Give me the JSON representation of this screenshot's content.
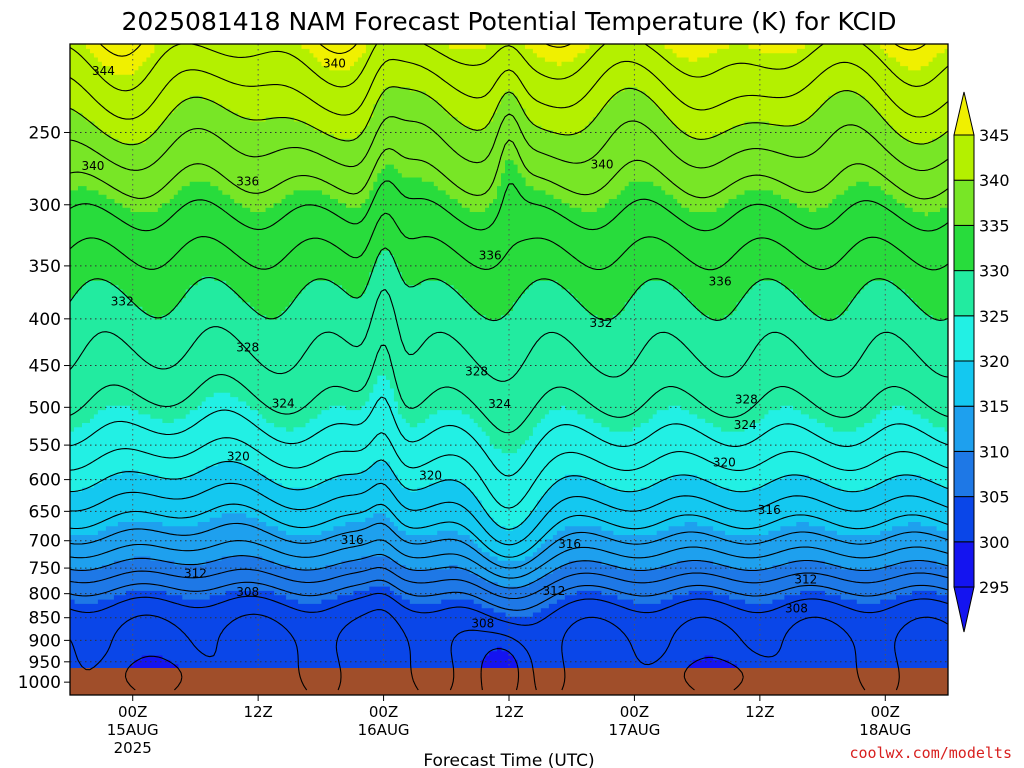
{
  "chart_data": {
    "type": "contour",
    "title": "2025081418 NAM Forecast Potential Temperature (K) for KCID",
    "xlabel": "Forecast Time (UTC)",
    "ylabel": "",
    "y_log_scale": true,
    "ylim": [
      1000,
      200
    ],
    "y_ticks": [
      250,
      300,
      350,
      400,
      450,
      500,
      550,
      600,
      650,
      700,
      750,
      800,
      850,
      900,
      950,
      1000
    ],
    "x_ticks": [
      {
        "hour": 6,
        "line1": "00Z",
        "line2": "15AUG",
        "line3": "2025"
      },
      {
        "hour": 18,
        "line1": "12Z",
        "line2": "",
        "line3": ""
      },
      {
        "hour": 30,
        "line1": "00Z",
        "line2": "16AUG",
        "line3": ""
      },
      {
        "hour": 42,
        "line1": "12Z",
        "line2": "",
        "line3": ""
      },
      {
        "hour": 54,
        "line1": "00Z",
        "line2": "17AUG",
        "line3": ""
      },
      {
        "hour": 66,
        "line1": "12Z",
        "line2": "",
        "line3": ""
      },
      {
        "hour": 78,
        "line1": "00Z",
        "line2": "18AUG",
        "line3": ""
      }
    ],
    "xlim_hours": [
      0,
      84
    ],
    "colorbar": {
      "levels": [
        295,
        300,
        305,
        310,
        315,
        320,
        325,
        330,
        335,
        340,
        345
      ],
      "colors": [
        "#1414f0",
        "#0a46e8",
        "#1e78e6",
        "#1ea0ee",
        "#14c8f0",
        "#22f0e4",
        "#22eba0",
        "#28dc3c",
        "#78e626",
        "#b4f000",
        "#f0f000"
      ],
      "extend_low_color": "#1414f0",
      "extend_high_color": "#f0f000"
    },
    "contour_labels": [
      {
        "value": "344",
        "hour": 3.2,
        "p": 214
      },
      {
        "value": "340",
        "hour": 25.3,
        "p": 210
      },
      {
        "value": "340",
        "hour": 2.2,
        "p": 272
      },
      {
        "value": "340",
        "hour": 50.9,
        "p": 271
      },
      {
        "value": "336",
        "hour": 17.0,
        "p": 283
      },
      {
        "value": "336",
        "hour": 40.2,
        "p": 341
      },
      {
        "value": "336",
        "hour": 62.2,
        "p": 364
      },
      {
        "value": "332",
        "hour": 5.0,
        "p": 383
      },
      {
        "value": "332",
        "hour": 50.8,
        "p": 404
      },
      {
        "value": "328",
        "hour": 17.0,
        "p": 430
      },
      {
        "value": "328",
        "hour": 38.9,
        "p": 457
      },
      {
        "value": "328",
        "hour": 64.7,
        "p": 490
      },
      {
        "value": "324",
        "hour": 20.4,
        "p": 495
      },
      {
        "value": "324",
        "hour": 41.1,
        "p": 496
      },
      {
        "value": "324",
        "hour": 64.6,
        "p": 523
      },
      {
        "value": "320",
        "hour": 16.1,
        "p": 566
      },
      {
        "value": "320",
        "hour": 34.5,
        "p": 594
      },
      {
        "value": "320",
        "hour": 62.6,
        "p": 575
      },
      {
        "value": "316",
        "hour": 66.9,
        "p": 648
      },
      {
        "value": "316",
        "hour": 27.0,
        "p": 699
      },
      {
        "value": "316",
        "hour": 47.8,
        "p": 706
      },
      {
        "value": "312",
        "hour": 12.0,
        "p": 760
      },
      {
        "value": "312",
        "hour": 46.3,
        "p": 795
      },
      {
        "value": "312",
        "hour": 70.4,
        "p": 772
      },
      {
        "value": "308",
        "hour": 17.0,
        "p": 797
      },
      {
        "value": "308",
        "hour": 39.5,
        "p": 862
      },
      {
        "value": "308",
        "hour": 69.5,
        "p": 830
      }
    ]
  },
  "credit": "coolwx.com/modelts"
}
